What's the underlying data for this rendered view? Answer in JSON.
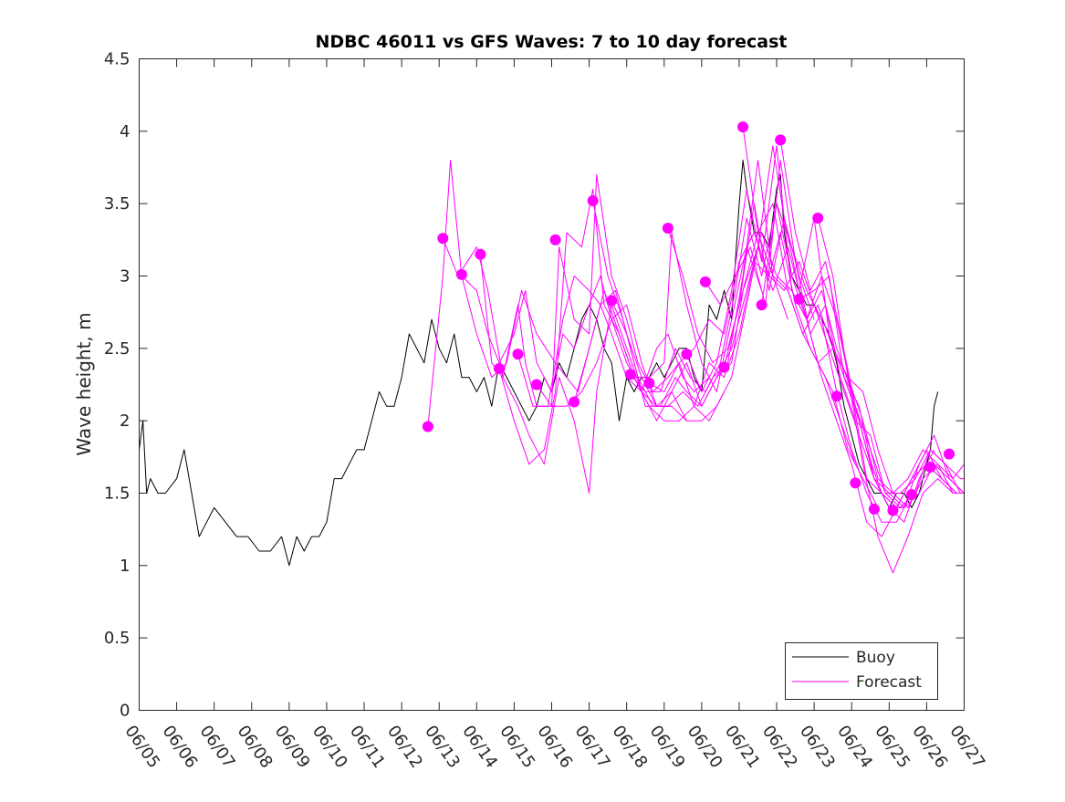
{
  "chart_data": {
    "type": "line",
    "title": "NDBC 46011 vs GFS Waves: 7 to 10 day forecast",
    "xlabel": "",
    "ylabel": "Wave height, m",
    "ylim": [
      0,
      4.5
    ],
    "xlim": [
      "06/05",
      "06/27"
    ],
    "xticks": [
      "06/05",
      "06/06",
      "06/07",
      "06/08",
      "06/09",
      "06/10",
      "06/11",
      "06/12",
      "06/13",
      "06/14",
      "06/15",
      "06/16",
      "06/17",
      "06/18",
      "06/19",
      "06/20",
      "06/21",
      "06/22",
      "06/23",
      "06/24",
      "06/25",
      "06/26",
      "06/27"
    ],
    "yticks": [
      "0",
      "0.5",
      "1",
      "1.5",
      "2",
      "2.5",
      "3",
      "3.5",
      "4",
      "4.5"
    ],
    "grid": false,
    "legend_position": "bottom-right",
    "legend": [
      {
        "label": "Buoy",
        "color": "#000000"
      },
      {
        "label": "Forecast",
        "color": "#ff00ff"
      }
    ],
    "colors": {
      "buoy": "#000000",
      "forecast": "#ff00ff"
    },
    "x_unit": "day of June",
    "series": [
      {
        "name": "Buoy",
        "color": "#000000",
        "x": [
          5.0,
          5.1,
          5.2,
          5.3,
          5.5,
          5.7,
          6.0,
          6.2,
          6.4,
          6.6,
          6.8,
          7.0,
          7.3,
          7.6,
          7.9,
          8.2,
          8.5,
          8.8,
          9.0,
          9.2,
          9.4,
          9.6,
          9.8,
          10.0,
          10.2,
          10.4,
          10.6,
          10.8,
          11.0,
          11.2,
          11.4,
          11.6,
          11.8,
          12.0,
          12.2,
          12.4,
          12.6,
          12.8,
          13.0,
          13.2,
          13.4,
          13.6,
          13.8,
          14.0,
          14.2,
          14.4,
          14.6,
          14.8,
          15.0,
          15.2,
          15.4,
          15.6,
          15.8,
          16.0,
          16.2,
          16.4,
          16.6,
          16.8,
          17.0,
          17.2,
          17.4,
          17.6,
          17.8,
          18.0,
          18.2,
          18.4,
          18.6,
          18.8,
          19.0,
          19.2,
          19.4,
          19.6,
          19.8,
          20.0,
          20.2,
          20.4,
          20.6,
          20.8,
          21.0,
          21.1,
          21.2,
          21.4,
          21.6,
          21.8,
          22.0,
          22.1,
          22.2,
          22.4,
          22.6,
          22.8,
          23.0,
          23.2,
          23.4,
          23.6,
          23.8,
          24.0,
          24.2,
          24.4,
          24.6,
          24.8,
          25.0,
          25.2,
          25.4,
          25.6,
          25.8,
          26.0,
          26.1,
          26.2,
          26.3
        ],
        "values": [
          1.8,
          2.0,
          1.5,
          1.6,
          1.5,
          1.5,
          1.6,
          1.8,
          1.5,
          1.2,
          1.3,
          1.4,
          1.3,
          1.2,
          1.2,
          1.1,
          1.1,
          1.2,
          1.0,
          1.2,
          1.1,
          1.2,
          1.2,
          1.3,
          1.6,
          1.6,
          1.7,
          1.8,
          1.8,
          2.0,
          2.2,
          2.1,
          2.1,
          2.3,
          2.6,
          2.5,
          2.4,
          2.7,
          2.5,
          2.4,
          2.6,
          2.3,
          2.3,
          2.2,
          2.3,
          2.1,
          2.4,
          2.3,
          2.2,
          2.1,
          2.0,
          2.1,
          2.3,
          2.2,
          2.4,
          2.3,
          2.5,
          2.7,
          2.8,
          2.7,
          2.5,
          2.4,
          2.0,
          2.3,
          2.2,
          2.3,
          2.3,
          2.4,
          2.3,
          2.4,
          2.5,
          2.5,
          2.3,
          2.2,
          2.8,
          2.7,
          2.9,
          2.7,
          3.5,
          3.8,
          3.6,
          3.3,
          3.3,
          3.2,
          3.6,
          3.7,
          3.3,
          3.0,
          2.9,
          2.8,
          2.8,
          2.7,
          2.6,
          2.4,
          2.1,
          1.9,
          1.7,
          1.6,
          1.5,
          1.5,
          1.4,
          1.5,
          1.5,
          1.4,
          1.5,
          1.7,
          1.8,
          2.1,
          2.2
        ]
      },
      {
        "name": "Forecast",
        "color": "#ff00ff",
        "x": [
          12.7,
          13.1,
          13.3,
          13.6,
          14.0,
          14.4,
          14.8,
          15.2,
          15.6,
          16.1,
          16.4,
          16.7,
          17.0,
          17.3,
          17.6,
          18.0,
          18.4,
          18.8,
          19.2
        ],
        "values": [
          1.96,
          3.0,
          3.8,
          3.0,
          2.6,
          2.3,
          2.4,
          2.9,
          2.6,
          2.4,
          2.3,
          2.2,
          2.5,
          2.8,
          2.6,
          2.3,
          2.2,
          2.1,
          2.1
        ]
      },
      {
        "name": "Forecast",
        "color": "#ff00ff",
        "x": [
          13.6,
          14.0,
          14.3,
          14.6,
          15.0,
          15.3,
          15.6,
          16.0,
          16.3,
          16.6,
          17.0,
          17.3,
          17.6,
          18.0,
          18.4,
          18.8,
          19.1,
          19.5,
          19.8,
          20.2
        ],
        "values": [
          3.0,
          2.9,
          2.6,
          2.4,
          2.6,
          2.9,
          2.4,
          2.2,
          2.6,
          2.5,
          2.8,
          3.0,
          2.7,
          2.4,
          2.2,
          2.5,
          2.6,
          2.3,
          2.2,
          2.3
        ]
      },
      {
        "name": "Forecast",
        "color": "#ff00ff",
        "x": [
          13.1,
          13.5,
          14.0,
          14.3,
          14.7,
          15.1,
          15.4,
          15.8,
          16.2,
          16.6,
          17.0,
          17.2,
          17.6,
          18.0,
          18.4,
          18.8,
          19.2,
          19.6
        ],
        "values": [
          3.26,
          3.0,
          3.2,
          2.9,
          2.3,
          2.1,
          1.9,
          1.7,
          2.3,
          2.0,
          1.5,
          2.2,
          2.8,
          2.5,
          2.2,
          2.0,
          2.2,
          2.0
        ]
      },
      {
        "name": "Forecast",
        "color": "#ff00ff",
        "x": [
          14.1,
          14.4,
          14.7,
          15.1,
          15.3,
          15.6,
          16.0,
          16.2,
          16.6,
          17.0,
          17.2,
          17.6,
          18.0,
          18.3,
          18.7,
          19.1,
          19.4,
          19.8,
          20.2,
          20.6
        ],
        "values": [
          3.15,
          2.4,
          2.3,
          2.8,
          2.4,
          2.1,
          2.1,
          3.2,
          2.7,
          2.6,
          3.7,
          3.0,
          2.7,
          2.4,
          2.2,
          2.3,
          2.4,
          2.1,
          2.0,
          2.2
        ]
      },
      {
        "name": "Forecast",
        "color": "#ff00ff",
        "x": [
          14.6,
          15.0,
          15.4,
          15.8,
          16.1,
          16.4,
          16.8,
          17.1,
          17.4,
          17.8,
          18.2,
          18.6,
          19.0,
          19.2,
          19.6,
          20.0,
          20.4,
          20.8,
          21.2,
          21.6
        ],
        "values": [
          2.36,
          2.0,
          1.7,
          1.8,
          2.2,
          3.3,
          3.2,
          3.6,
          2.8,
          2.6,
          2.3,
          2.3,
          2.4,
          3.3,
          2.8,
          2.4,
          2.2,
          2.7,
          3.2,
          2.9
        ]
      },
      {
        "name": "Forecast",
        "color": "#ff00ff",
        "x": [
          15.1,
          15.5,
          15.9,
          16.3,
          16.6,
          17.0,
          17.3,
          17.7,
          18.1,
          18.5,
          18.9,
          19.3,
          19.6,
          20.0,
          20.4,
          20.8,
          21.1,
          21.5,
          21.9,
          22.3
        ],
        "values": [
          2.46,
          2.1,
          2.1,
          2.7,
          3.0,
          2.9,
          2.8,
          2.9,
          2.5,
          2.1,
          2.1,
          2.3,
          2.2,
          2.1,
          2.3,
          2.4,
          2.9,
          3.3,
          3.0,
          2.7
        ]
      },
      {
        "name": "Forecast",
        "color": "#ff00ff",
        "x": [
          15.6,
          16.0,
          16.4,
          16.8,
          17.2,
          17.6,
          18.0,
          18.4,
          18.8,
          19.2,
          19.6,
          20.0,
          20.4,
          20.8,
          21.2,
          21.5,
          21.9,
          22.2,
          22.6,
          23.0
        ],
        "values": [
          2.25,
          2.1,
          2.1,
          2.2,
          2.4,
          2.7,
          2.8,
          2.4,
          2.1,
          2.1,
          2.0,
          2.0,
          2.1,
          2.3,
          2.8,
          3.2,
          3.9,
          3.4,
          3.0,
          2.7
        ]
      },
      {
        "name": "Forecast",
        "color": "#ff00ff",
        "x": [
          16.6,
          17.0,
          17.4,
          17.8,
          18.2,
          18.6,
          19.0,
          19.4,
          19.8,
          20.2,
          20.6,
          21.0,
          21.4,
          21.8,
          22.1,
          22.5,
          22.9,
          23.3,
          23.7,
          24.1
        ],
        "values": [
          2.13,
          2.5,
          2.9,
          2.6,
          2.3,
          2.1,
          2.0,
          2.0,
          2.1,
          2.4,
          2.3,
          2.6,
          3.1,
          3.0,
          3.3,
          2.8,
          2.5,
          2.3,
          2.0,
          1.7
        ]
      },
      {
        "name": "Forecast",
        "color": "#ff00ff",
        "x": [
          17.1,
          17.5,
          17.9,
          18.3,
          18.7,
          19.1,
          19.5,
          19.9,
          20.3,
          20.7,
          21.1,
          21.5,
          21.9,
          22.3,
          22.7,
          23.1,
          23.5,
          23.9,
          24.3,
          24.7
        ],
        "values": [
          3.52,
          3.0,
          2.7,
          2.3,
          2.1,
          2.1,
          2.2,
          2.1,
          2.3,
          2.4,
          3.0,
          3.8,
          3.0,
          2.9,
          2.6,
          2.4,
          2.2,
          1.8,
          1.6,
          1.4
        ]
      },
      {
        "name": "Forecast",
        "color": "#ff00ff",
        "x": [
          17.6,
          18.0,
          18.4,
          18.8,
          19.2,
          19.6,
          20.0,
          20.4,
          20.8,
          21.2,
          21.6,
          22.0,
          22.4,
          22.8,
          23.2,
          23.6,
          24.0,
          24.4,
          24.8,
          25.2
        ],
        "values": [
          2.83,
          2.6,
          2.3,
          2.1,
          2.2,
          2.4,
          2.1,
          2.3,
          2.5,
          2.9,
          3.3,
          3.0,
          2.9,
          2.7,
          2.3,
          2.0,
          1.7,
          1.3,
          1.2,
          1.4
        ]
      },
      {
        "name": "Forecast",
        "color": "#ff00ff",
        "x": [
          18.1,
          18.5,
          18.9,
          19.3,
          19.7,
          20.1,
          20.5,
          20.9,
          21.2,
          21.6,
          22.0,
          22.4,
          22.8,
          23.2,
          23.6,
          24.0,
          24.4,
          24.8,
          25.2,
          25.6
        ],
        "values": [
          2.32,
          2.2,
          2.2,
          2.5,
          2.3,
          2.2,
          2.4,
          2.9,
          3.4,
          3.0,
          3.5,
          3.2,
          2.9,
          2.7,
          2.2,
          1.8,
          1.5,
          1.3,
          1.3,
          1.5
        ]
      },
      {
        "name": "Forecast",
        "color": "#ff00ff",
        "x": [
          18.6,
          19.0,
          19.4,
          19.8,
          20.2,
          20.6,
          21.0,
          21.4,
          21.8,
          22.2,
          22.6,
          23.0,
          23.4,
          23.8,
          24.2,
          24.6,
          25.0,
          25.4,
          25.8,
          26.2
        ],
        "values": [
          2.26,
          2.2,
          2.4,
          2.5,
          2.7,
          2.6,
          3.1,
          3.3,
          3.0,
          2.9,
          3.1,
          2.8,
          2.5,
          2.2,
          1.9,
          1.6,
          1.4,
          1.3,
          1.6,
          1.8
        ]
      },
      {
        "name": "Forecast",
        "color": "#ff00ff",
        "x": [
          19.1,
          19.5,
          19.9,
          20.3,
          20.7,
          21.1,
          21.5,
          21.9,
          22.3,
          22.7,
          23.1,
          23.5,
          23.9,
          24.3,
          24.7,
          25.1,
          25.5,
          25.9,
          26.3,
          26.7
        ],
        "values": [
          3.33,
          3.0,
          2.6,
          2.4,
          2.5,
          2.9,
          3.2,
          2.9,
          3.2,
          2.8,
          2.4,
          2.5,
          2.3,
          1.7,
          1.2,
          0.95,
          1.2,
          1.5,
          1.6,
          1.5
        ]
      },
      {
        "name": "Forecast",
        "color": "#ff00ff",
        "x": [
          19.6,
          20.0,
          20.4,
          20.8,
          21.2,
          21.6,
          22.0,
          22.4,
          22.8,
          23.2,
          23.6,
          24.0,
          24.4,
          24.8,
          25.2,
          25.6,
          26.0,
          26.4,
          26.8,
          27.0
        ],
        "values": [
          2.46,
          2.2,
          2.4,
          2.9,
          3.6,
          3.1,
          3.9,
          2.9,
          2.7,
          2.9,
          2.5,
          2.2,
          1.8,
          1.5,
          1.4,
          1.6,
          1.7,
          1.6,
          1.5,
          1.5
        ]
      },
      {
        "name": "Forecast",
        "color": "#ff00ff",
        "x": [
          20.1,
          20.5,
          20.9,
          21.3,
          21.7,
          22.1,
          22.5,
          22.9,
          23.3,
          23.7,
          24.1,
          24.5,
          24.9,
          25.3,
          25.7,
          26.1,
          26.5,
          26.9,
          27.0
        ],
        "values": [
          2.96,
          2.8,
          3.0,
          3.2,
          2.8,
          3.8,
          3.1,
          2.6,
          2.8,
          2.3,
          2.0,
          1.9,
          1.5,
          1.4,
          1.5,
          1.8,
          1.7,
          1.6,
          1.6
        ]
      },
      {
        "name": "Forecast",
        "color": "#ff00ff",
        "x": [
          20.6,
          21.0,
          21.4,
          21.8,
          22.2,
          22.6,
          23.0,
          23.4,
          23.8,
          24.2,
          24.6,
          25.0,
          25.4,
          25.8,
          26.2,
          26.6,
          27.0
        ],
        "values": [
          2.37,
          2.8,
          3.5,
          2.9,
          3.4,
          2.9,
          3.4,
          2.6,
          2.3,
          2.1,
          1.6,
          1.5,
          1.4,
          1.7,
          1.9,
          1.6,
          1.5
        ]
      },
      {
        "name": "Forecast",
        "color": "#ff00ff",
        "x": [
          21.1,
          21.5,
          21.9,
          22.3,
          22.7,
          23.1,
          23.5,
          23.9,
          24.3,
          24.7,
          25.1,
          25.5,
          25.9,
          26.3,
          26.7,
          27.0
        ],
        "values": [
          4.03,
          3.3,
          3.5,
          2.9,
          2.6,
          2.8,
          2.5,
          2.3,
          2.0,
          1.6,
          1.5,
          1.6,
          1.8,
          1.7,
          1.5,
          1.5
        ]
      },
      {
        "name": "Forecast",
        "color": "#ff00ff",
        "x": [
          21.6,
          22.0,
          22.4,
          22.8,
          23.2,
          23.6,
          24.0,
          24.4,
          24.8,
          25.2,
          25.6,
          26.0,
          26.4,
          26.8,
          27.0
        ],
        "values": [
          2.8,
          3.5,
          3.0,
          2.7,
          3.0,
          2.7,
          2.2,
          1.6,
          1.5,
          1.4,
          1.6,
          1.8,
          1.6,
          1.5,
          1.5
        ]
      },
      {
        "name": "Forecast",
        "color": "#ff00ff",
        "x": [
          22.1,
          22.5,
          22.9,
          23.3,
          23.7,
          24.1,
          24.5,
          24.9,
          25.3,
          25.7,
          26.1,
          26.5,
          26.9,
          27.0
        ],
        "values": [
          3.94,
          3.3,
          2.9,
          3.1,
          2.6,
          2.1,
          1.8,
          1.5,
          1.5,
          1.6,
          1.8,
          1.7,
          1.5,
          1.5
        ]
      },
      {
        "name": "Forecast",
        "color": "#ff00ff",
        "x": [
          22.6,
          23.0,
          23.4,
          23.8,
          24.2,
          24.6,
          25.0,
          25.4,
          25.8,
          26.2,
          26.6,
          27.0
        ],
        "values": [
          2.84,
          2.9,
          3.0,
          2.3,
          2.0,
          1.6,
          1.4,
          1.4,
          1.5,
          1.7,
          1.6,
          1.5
        ]
      },
      {
        "name": "Forecast",
        "color": "#ff00ff",
        "x": [
          23.1,
          23.5,
          23.9,
          24.3,
          24.7,
          25.1,
          25.5,
          25.9,
          26.3,
          26.7,
          27.0
        ],
        "values": [
          3.4,
          3.0,
          2.3,
          2.2,
          1.8,
          1.5,
          1.4,
          1.6,
          1.7,
          1.6,
          1.7
        ]
      }
    ],
    "forecast_markers": {
      "x": [
        12.7,
        13.1,
        13.6,
        14.1,
        14.6,
        15.1,
        15.6,
        16.1,
        16.6,
        17.1,
        17.6,
        18.1,
        18.6,
        19.1,
        19.6,
        20.1,
        20.6,
        21.1,
        21.6,
        22.1,
        22.6,
        23.1,
        23.6,
        24.1,
        24.6,
        25.1,
        25.6,
        26.1,
        26.6
      ],
      "values": [
        1.96,
        3.26,
        3.01,
        3.15,
        2.36,
        2.46,
        2.25,
        3.25,
        2.13,
        3.52,
        2.83,
        2.32,
        2.26,
        3.33,
        2.46,
        2.96,
        2.37,
        4.03,
        2.8,
        3.94,
        2.84,
        3.4,
        2.17,
        1.57,
        1.39,
        1.38,
        1.49,
        1.68,
        1.77
      ]
    }
  }
}
